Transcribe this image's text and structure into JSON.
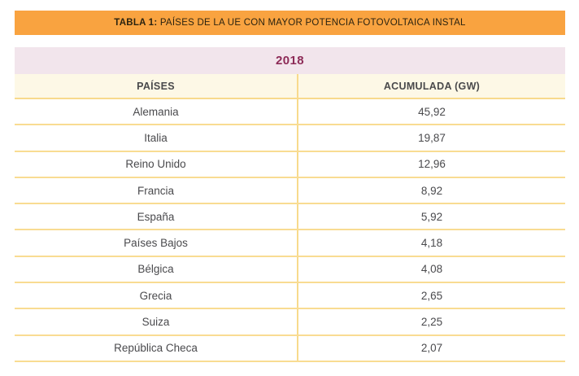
{
  "title_bar": {
    "label_bold": "TABLA 1:",
    "label_rest": " PAÍSES DE LA UE CON MAYOR POTENCIA FOTOVOLTAICA INSTAL",
    "background": "#F9A340",
    "text_color": "#2B2310"
  },
  "table": {
    "year": "2018",
    "columns": [
      "PAÍSES",
      "ACUMULADA (GW)"
    ],
    "rows": [
      {
        "country": "Alemania",
        "value": "45,92"
      },
      {
        "country": "Italia",
        "value": "19,87"
      },
      {
        "country": "Reino Unido",
        "value": "12,96"
      },
      {
        "country": "Francia",
        "value": "8,92"
      },
      {
        "country": "España",
        "value": "5,92"
      },
      {
        "country": "Países Bajos",
        "value": "4,18"
      },
      {
        "country": "Bélgica",
        "value": "4,08"
      },
      {
        "country": "Grecia",
        "value": "2,65"
      },
      {
        "country": "Suiza",
        "value": "2,25"
      },
      {
        "country": "República Checa",
        "value": "2,07"
      }
    ],
    "colors": {
      "year_row_bg": "#F2E5EC",
      "year_text": "#8D2B57",
      "header_bg": "#FDF8E6",
      "header_text": "#4A4A4C",
      "row_text": "#4A4A4D",
      "border_gold": "#F8DA8C"
    }
  }
}
